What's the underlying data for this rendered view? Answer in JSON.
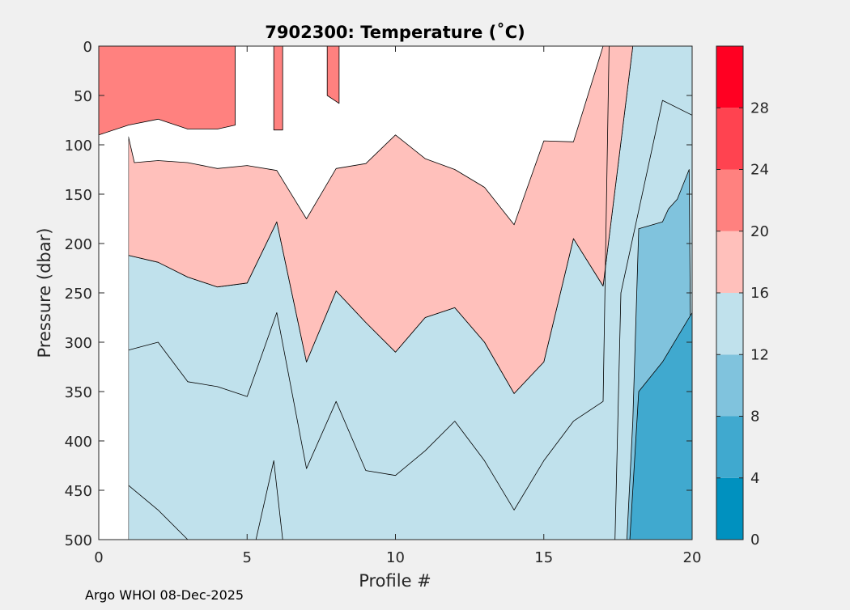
{
  "chart_data": {
    "type": "heatmap",
    "subtype": "filled-contour",
    "title": "7902300:  Temperature (˚C)",
    "xlabel": "Profile #",
    "ylabel": "Pressure (dbar)",
    "xlim": [
      0,
      20
    ],
    "ylim": [
      0,
      500
    ],
    "y_reversed": true,
    "xticks": [
      0,
      5,
      10,
      15,
      20
    ],
    "yticks": [
      0,
      50,
      100,
      150,
      200,
      250,
      300,
      350,
      400,
      450,
      500
    ],
    "levels": [
      0,
      4,
      8,
      12,
      16,
      20,
      24,
      28
    ],
    "colorbar": {
      "ticks": [
        0,
        4,
        8,
        12,
        16,
        20,
        24,
        28
      ],
      "range": [
        0,
        32
      ],
      "colors": [
        "#0091bf",
        "#40a9cf",
        "#80c3dd",
        "#c0e1ec",
        "#ffc0bb",
        "#ff817f",
        "#ff4350",
        "#ff0022"
      ]
    },
    "missing_region": {
      "x": [
        0,
        1
      ],
      "pressure_from": 92,
      "pressure_to": 500
    },
    "bands": [
      {
        "name": "band-12-16",
        "temp_range": [
          12,
          16
        ],
        "polygon": [
          [
            1,
            212
          ],
          [
            2,
            219
          ],
          [
            3,
            234
          ],
          [
            4,
            244
          ],
          [
            5,
            240
          ],
          [
            6,
            178
          ],
          [
            7,
            320
          ],
          [
            8,
            248
          ],
          [
            9,
            280
          ],
          [
            10,
            310
          ],
          [
            11,
            275
          ],
          [
            12,
            265
          ],
          [
            13,
            300
          ],
          [
            14,
            352
          ],
          [
            15,
            320
          ],
          [
            16,
            195
          ],
          [
            17,
            243
          ],
          [
            18,
            0
          ],
          [
            20,
            0
          ],
          [
            20,
            500
          ],
          [
            1,
            500
          ]
        ]
      },
      {
        "name": "band-16-20",
        "temp_range": [
          16,
          20
        ],
        "polygon": [
          [
            1,
            92
          ],
          [
            1.2,
            118
          ],
          [
            2,
            116
          ],
          [
            3,
            118
          ],
          [
            4,
            124
          ],
          [
            5,
            121
          ],
          [
            6,
            126
          ],
          [
            7,
            175
          ],
          [
            8,
            124
          ],
          [
            9,
            119
          ],
          [
            10,
            90
          ],
          [
            11,
            114
          ],
          [
            12,
            125
          ],
          [
            13,
            143
          ],
          [
            14,
            181
          ],
          [
            15,
            96
          ],
          [
            16,
            97
          ],
          [
            17,
            0
          ],
          [
            18,
            0
          ],
          [
            17,
            243
          ],
          [
            16,
            195
          ],
          [
            15,
            320
          ],
          [
            14,
            352
          ],
          [
            13,
            300
          ],
          [
            12,
            265
          ],
          [
            11,
            275
          ],
          [
            10,
            310
          ],
          [
            9,
            280
          ],
          [
            8,
            248
          ],
          [
            7,
            320
          ],
          [
            6,
            178
          ],
          [
            5,
            240
          ],
          [
            4,
            244
          ],
          [
            3,
            234
          ],
          [
            2,
            219
          ],
          [
            1,
            212
          ]
        ]
      },
      {
        "name": "band-20-24-left",
        "temp_range": [
          20,
          24
        ],
        "polygon": [
          [
            0,
            0
          ],
          [
            4.6,
            0
          ],
          [
            4.6,
            80
          ],
          [
            4,
            84
          ],
          [
            3,
            84
          ],
          [
            2,
            74
          ],
          [
            1,
            80
          ],
          [
            0,
            90
          ]
        ]
      },
      {
        "name": "band-20-24-mid",
        "temp_range": [
          20,
          24
        ],
        "polygon": [
          [
            5.9,
            0
          ],
          [
            6.2,
            0
          ],
          [
            6.2,
            85
          ],
          [
            5.9,
            85
          ]
        ]
      },
      {
        "name": "band-20-24-right",
        "temp_range": [
          20,
          24
        ],
        "polygon": [
          [
            7.7,
            0
          ],
          [
            8.1,
            0
          ],
          [
            8.1,
            58
          ],
          [
            7.7,
            50
          ]
        ]
      },
      {
        "name": "band-8-12",
        "temp_range": [
          8,
          12
        ],
        "polygon": [
          [
            19.9,
            125
          ],
          [
            19.5,
            155
          ],
          [
            19.2,
            165
          ],
          [
            19,
            178
          ],
          [
            18.2,
            185
          ],
          [
            18,
            380
          ],
          [
            17.8,
            500
          ],
          [
            20,
            500
          ]
        ]
      },
      {
        "name": "band-4-8",
        "temp_range": [
          4,
          8
        ],
        "polygon": [
          [
            20,
            270
          ],
          [
            19,
            320
          ],
          [
            18.2,
            350
          ],
          [
            17.9,
            500
          ],
          [
            20,
            500
          ]
        ]
      }
    ],
    "contours": [
      {
        "level": 16,
        "points": [
          [
            1,
            308
          ],
          [
            2,
            300
          ],
          [
            3,
            340
          ],
          [
            4,
            345
          ],
          [
            5,
            355
          ],
          [
            6,
            270
          ],
          [
            7,
            428
          ],
          [
            8,
            360
          ],
          [
            9,
            430
          ],
          [
            10,
            435
          ],
          [
            11,
            410
          ],
          [
            12,
            380
          ],
          [
            13,
            420
          ],
          [
            14,
            470
          ],
          [
            15,
            420
          ],
          [
            16,
            380
          ],
          [
            17,
            360
          ],
          [
            17.2,
            0
          ]
        ]
      },
      {
        "level": 12,
        "points": [
          [
            1,
            445
          ],
          [
            2,
            470
          ],
          [
            3,
            500
          ]
        ]
      },
      {
        "level": 12,
        "points": [
          [
            5.3,
            500
          ],
          [
            5.9,
            420
          ],
          [
            6.2,
            500
          ]
        ]
      },
      {
        "level": 12,
        "points": [
          [
            17.4,
            500
          ],
          [
            17.6,
            250
          ],
          [
            19,
            55
          ],
          [
            20,
            70
          ]
        ]
      }
    ],
    "caption": "Argo WHOI 08-Dec-2025"
  }
}
